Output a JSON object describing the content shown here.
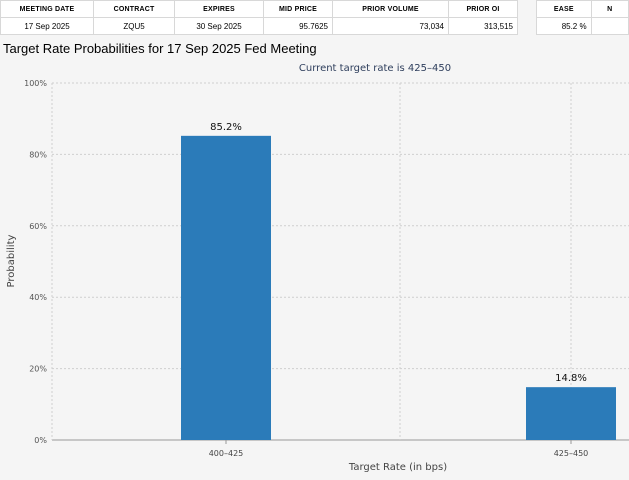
{
  "table_main": {
    "headers": [
      "MEETING DATE",
      "CONTRACT",
      "EXPIRES",
      "MID PRICE",
      "PRIOR VOLUME",
      "PRIOR OI"
    ],
    "row": [
      "17 Sep 2025",
      "ZQU5",
      "30 Sep 2025",
      "95.7625",
      "73,034",
      "313,515"
    ]
  },
  "table_side": {
    "headers": [
      "EASE",
      "N"
    ],
    "row": [
      "85.2 %",
      ""
    ]
  },
  "chart_data": {
    "type": "bar",
    "title": "Target Rate Probabilities for 17 Sep 2025 Fed Meeting",
    "subtitle": "Current target rate is 425–450",
    "xlabel": "Target Rate (in bps)",
    "ylabel": "Probability",
    "categories": [
      "400–425",
      "425–450"
    ],
    "values": [
      85.2,
      14.8
    ],
    "value_labels": [
      "85.2%",
      "14.8%"
    ],
    "ylim": [
      0,
      100
    ],
    "yticks": [
      0,
      20,
      40,
      60,
      80,
      100
    ],
    "ytick_labels": [
      "0%",
      "20%",
      "40%",
      "60%",
      "80%",
      "100%"
    ],
    "grid": true,
    "bar_color": "#2b7bb9",
    "legend": "none"
  }
}
